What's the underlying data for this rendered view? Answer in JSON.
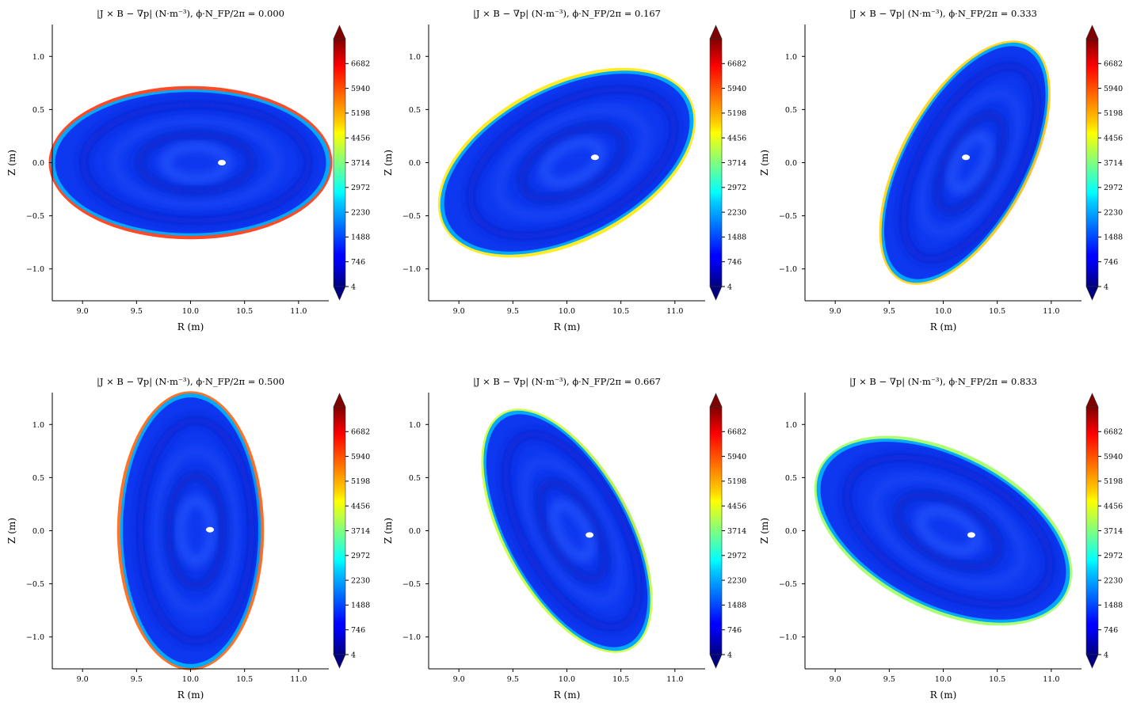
{
  "chart_data": {
    "type": "heatmap",
    "xlim": [
      8.72,
      11.28
    ],
    "ylim": [
      -1.3,
      1.3
    ],
    "xticks": [
      9.0,
      9.5,
      10.0,
      10.5,
      11.0
    ],
    "xtick_labels": [
      "9.0",
      "9.5",
      "10.0",
      "10.5",
      "11.0"
    ],
    "yticks": [
      1.0,
      0.5,
      0.0,
      -0.5,
      -1.0
    ],
    "ytick_labels": [
      "1.0",
      "0.5",
      "0.0",
      "−0.5",
      "−1.0"
    ],
    "xlabel": "R (m)",
    "ylabel": "Z (m)",
    "colorbar": {
      "colormap": "jet",
      "vmin": 4,
      "vmax": 7424,
      "extend": "both",
      "ticks": [
        4,
        746,
        1488,
        2230,
        2972,
        3714,
        4456,
        5198,
        5940,
        6682
      ]
    },
    "panels": [
      {
        "title": "|J × B − ∇p| (N·m⁻³), ϕ·N_FP/2π = 0.000",
        "phi": 0.0
      },
      {
        "title": "|J × B − ∇p| (N·m⁻³), ϕ·N_FP/2π = 0.167",
        "phi": 0.167
      },
      {
        "title": "|J × B − ∇p| (N·m⁻³), ϕ·N_FP/2π = 0.333",
        "phi": 0.333
      },
      {
        "title": "|J × B − ∇p| (N·m⁻³), ϕ·N_FP/2π = 0.500",
        "phi": 0.5
      },
      {
        "title": "|J × B − ∇p| (N·m⁻³), ϕ·N_FP/2π = 0.667",
        "phi": 0.667
      },
      {
        "title": "|J × B − ∇p| (N·m⁻³), ϕ·N_FP/2π = 0.833",
        "phi": 0.833
      }
    ]
  }
}
